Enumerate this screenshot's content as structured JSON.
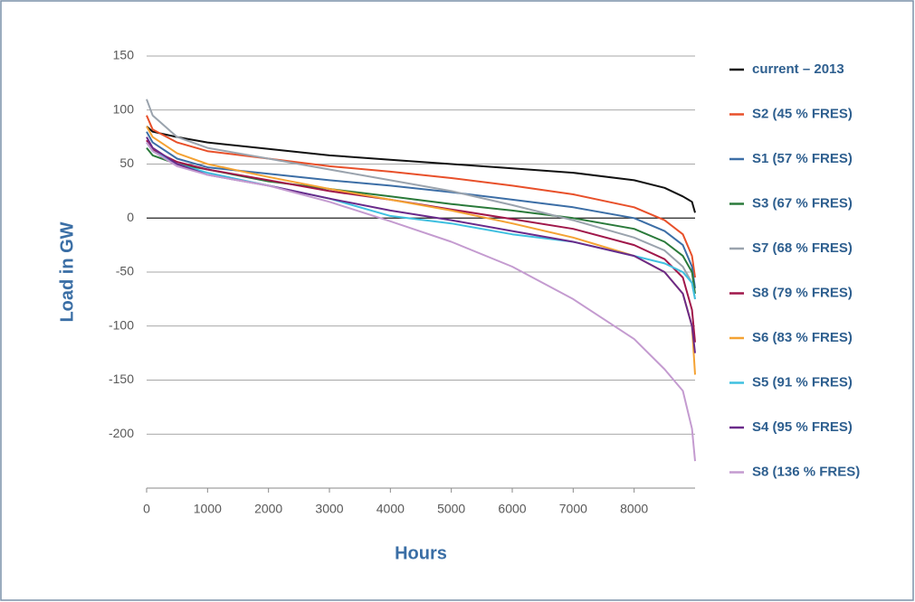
{
  "chart_data": {
    "type": "line",
    "xlabel": "Hours",
    "ylabel": "Load in GW",
    "x": [
      0,
      100,
      500,
      1000,
      2000,
      3000,
      4000,
      5000,
      6000,
      7000,
      8000,
      8500,
      8800,
      8950,
      9000
    ],
    "xlim": [
      0,
      9000
    ],
    "xticks": [
      0,
      1000,
      2000,
      3000,
      4000,
      5000,
      6000,
      7000,
      8000
    ],
    "ylim": [
      -250,
      150
    ],
    "yticks": [
      -200,
      -150,
      -100,
      -50,
      0,
      50,
      100,
      150
    ],
    "grid": true,
    "legend": "right",
    "series": [
      {
        "name": "current – 2013",
        "color": "#111111",
        "values": [
          85,
          80,
          75,
          70,
          64,
          58,
          54,
          50,
          46,
          42,
          35,
          28,
          20,
          15,
          5
        ]
      },
      {
        "name": "S2 (45 % FRES)",
        "color": "#e8502a",
        "values": [
          95,
          82,
          70,
          62,
          55,
          48,
          43,
          37,
          30,
          22,
          10,
          -2,
          -15,
          -35,
          -55
        ]
      },
      {
        "name": "S1 (57 % FRES)",
        "color": "#3c6ea6",
        "values": [
          80,
          70,
          55,
          47,
          41,
          35,
          30,
          24,
          17,
          10,
          0,
          -12,
          -25,
          -45,
          -65
        ]
      },
      {
        "name": "S3 (67 % FRES)",
        "color": "#2a7a3a",
        "values": [
          65,
          58,
          50,
          45,
          34,
          27,
          20,
          13,
          7,
          0,
          -10,
          -22,
          -35,
          -50,
          -70
        ]
      },
      {
        "name": "S7 (68 % FRES)",
        "color": "#9aa3ad",
        "values": [
          110,
          95,
          75,
          65,
          55,
          45,
          35,
          25,
          12,
          -2,
          -18,
          -30,
          -45,
          -60,
          -75
        ]
      },
      {
        "name": "S8 (79 % FRES)",
        "color": "#a0174a",
        "values": [
          72,
          63,
          52,
          45,
          35,
          25,
          17,
          8,
          -1,
          -10,
          -25,
          -38,
          -55,
          -85,
          -115
        ]
      },
      {
        "name": "S6 (83 % FRES)",
        "color": "#f4a233",
        "values": [
          85,
          75,
          60,
          50,
          38,
          27,
          17,
          7,
          -5,
          -18,
          -35,
          -50,
          -70,
          -100,
          -145
        ]
      },
      {
        "name": "S5 (91 % FRES)",
        "color": "#3fc0e0",
        "values": [
          70,
          62,
          50,
          42,
          30,
          18,
          2,
          -5,
          -15,
          -22,
          -35,
          -42,
          -50,
          -60,
          -75
        ]
      },
      {
        "name": "S4 (95 % FRES)",
        "color": "#6a2a8a",
        "values": [
          75,
          65,
          50,
          40,
          30,
          18,
          7,
          -2,
          -12,
          -22,
          -35,
          -50,
          -70,
          -100,
          -125
        ]
      },
      {
        "name": "S8 (136 % FRES)",
        "color": "#c49bd0",
        "values": [
          70,
          62,
          48,
          40,
          30,
          15,
          -3,
          -22,
          -45,
          -75,
          -112,
          -140,
          -160,
          -195,
          -225
        ]
      }
    ]
  }
}
